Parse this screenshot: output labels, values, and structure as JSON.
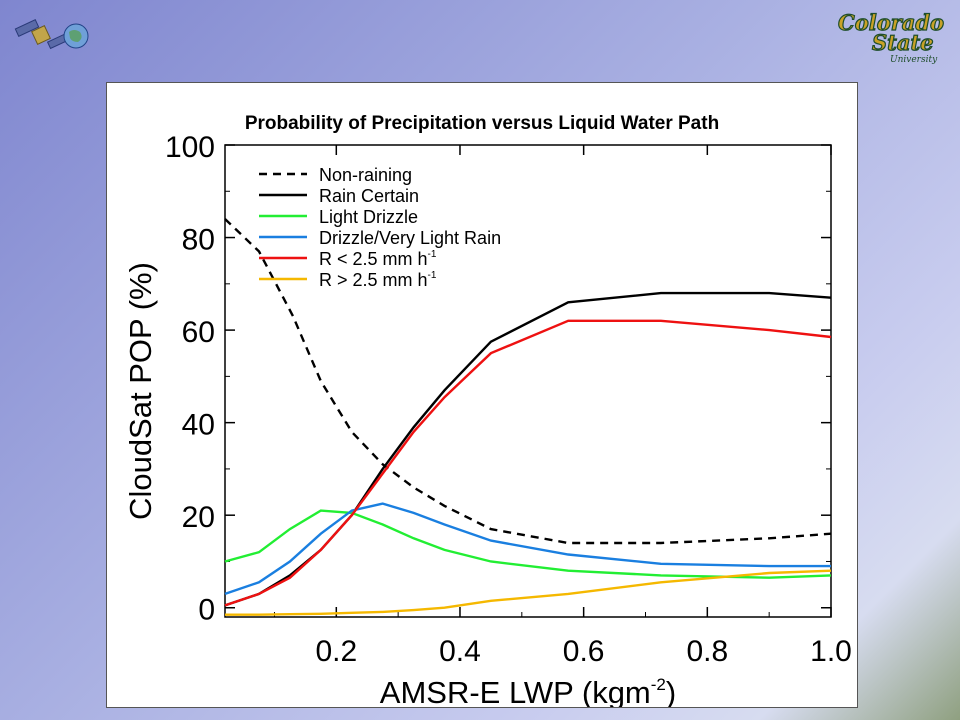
{
  "logos": {
    "university_line1": "Colorado",
    "university_line2": "State",
    "university_line3": "University"
  },
  "colors": {
    "accent_gold": "#c9a227",
    "accent_green": "#1e4d2b"
  },
  "chart_data": {
    "type": "line",
    "title": "Probability of Precipitation versus Liquid Water Path",
    "xlabel": "AMSR-E LWP (kgm",
    "xlabel_sup": "-2",
    "xlabel_end": ")",
    "ylabel": "CloudSat POP (%)",
    "xlim": [
      0.02,
      1.0
    ],
    "ylim": [
      -2,
      100
    ],
    "xticks": [
      "0.2",
      "0.4",
      "0.6",
      "0.8",
      "1.0"
    ],
    "xtick_values": [
      0.2,
      0.4,
      0.6,
      0.8,
      1.0
    ],
    "yticks": [
      "0",
      "20",
      "40",
      "60",
      "80",
      "100"
    ],
    "ytick_values": [
      0,
      20,
      40,
      60,
      80,
      100
    ],
    "legend_position": "top-left",
    "series": [
      {
        "name": "Non-raining",
        "color": "#000000",
        "dash": true,
        "sup": "",
        "points": [
          [
            0.02,
            84
          ],
          [
            0.075,
            77
          ],
          [
            0.13,
            63
          ],
          [
            0.175,
            49
          ],
          [
            0.225,
            38
          ],
          [
            0.275,
            31
          ],
          [
            0.325,
            26
          ],
          [
            0.375,
            22
          ],
          [
            0.45,
            17
          ],
          [
            0.575,
            14
          ],
          [
            0.725,
            14
          ],
          [
            0.9,
            15
          ],
          [
            1.0,
            16
          ]
        ]
      },
      {
        "name": "Rain Certain",
        "color": "#000000",
        "dash": false,
        "sup": "",
        "points": [
          [
            0.02,
            0.5
          ],
          [
            0.075,
            3
          ],
          [
            0.125,
            7
          ],
          [
            0.175,
            12.5
          ],
          [
            0.225,
            20
          ],
          [
            0.275,
            30
          ],
          [
            0.325,
            39
          ],
          [
            0.375,
            47
          ],
          [
            0.45,
            57.5
          ],
          [
            0.575,
            66
          ],
          [
            0.725,
            68
          ],
          [
            0.9,
            68
          ],
          [
            1.0,
            67
          ]
        ]
      },
      {
        "name": "Light Drizzle",
        "color": "#22ee33",
        "dash": false,
        "sup": "",
        "points": [
          [
            0.02,
            10
          ],
          [
            0.075,
            12
          ],
          [
            0.125,
            17
          ],
          [
            0.175,
            21
          ],
          [
            0.225,
            20.5
          ],
          [
            0.275,
            18
          ],
          [
            0.325,
            15
          ],
          [
            0.375,
            12.5
          ],
          [
            0.45,
            10
          ],
          [
            0.575,
            8
          ],
          [
            0.725,
            7
          ],
          [
            0.9,
            6.5
          ],
          [
            1.0,
            7
          ]
        ]
      },
      {
        "name": "Drizzle/Very Light Rain",
        "color": "#1a7fe0",
        "dash": false,
        "sup": "",
        "points": [
          [
            0.02,
            3
          ],
          [
            0.075,
            5.5
          ],
          [
            0.125,
            10
          ],
          [
            0.175,
            16
          ],
          [
            0.225,
            21
          ],
          [
            0.275,
            22.5
          ],
          [
            0.325,
            20.5
          ],
          [
            0.375,
            18
          ],
          [
            0.45,
            14.5
          ],
          [
            0.575,
            11.5
          ],
          [
            0.725,
            9.5
          ],
          [
            0.9,
            9
          ],
          [
            1.0,
            9
          ]
        ]
      },
      {
        "name": "R < 2.5 mm h",
        "color": "#ee1111",
        "dash": false,
        "sup": "-1",
        "points": [
          [
            0.02,
            0.5
          ],
          [
            0.075,
            3
          ],
          [
            0.125,
            6.5
          ],
          [
            0.175,
            12.5
          ],
          [
            0.225,
            20
          ],
          [
            0.275,
            29
          ],
          [
            0.325,
            38
          ],
          [
            0.375,
            45.5
          ],
          [
            0.45,
            55
          ],
          [
            0.575,
            62
          ],
          [
            0.725,
            62
          ],
          [
            0.9,
            60
          ],
          [
            1.0,
            58.5
          ]
        ]
      },
      {
        "name": "R > 2.5 mm h",
        "color": "#f5b800",
        "dash": false,
        "sup": "-1",
        "points": [
          [
            0.02,
            -1.5
          ],
          [
            0.075,
            -1.5
          ],
          [
            0.125,
            -1.4
          ],
          [
            0.175,
            -1.3
          ],
          [
            0.225,
            -1.1
          ],
          [
            0.275,
            -0.9
          ],
          [
            0.325,
            -0.5
          ],
          [
            0.375,
            0
          ],
          [
            0.45,
            1.5
          ],
          [
            0.575,
            3
          ],
          [
            0.725,
            5.5
          ],
          [
            0.9,
            7.5
          ],
          [
            1.0,
            8
          ]
        ]
      }
    ]
  }
}
